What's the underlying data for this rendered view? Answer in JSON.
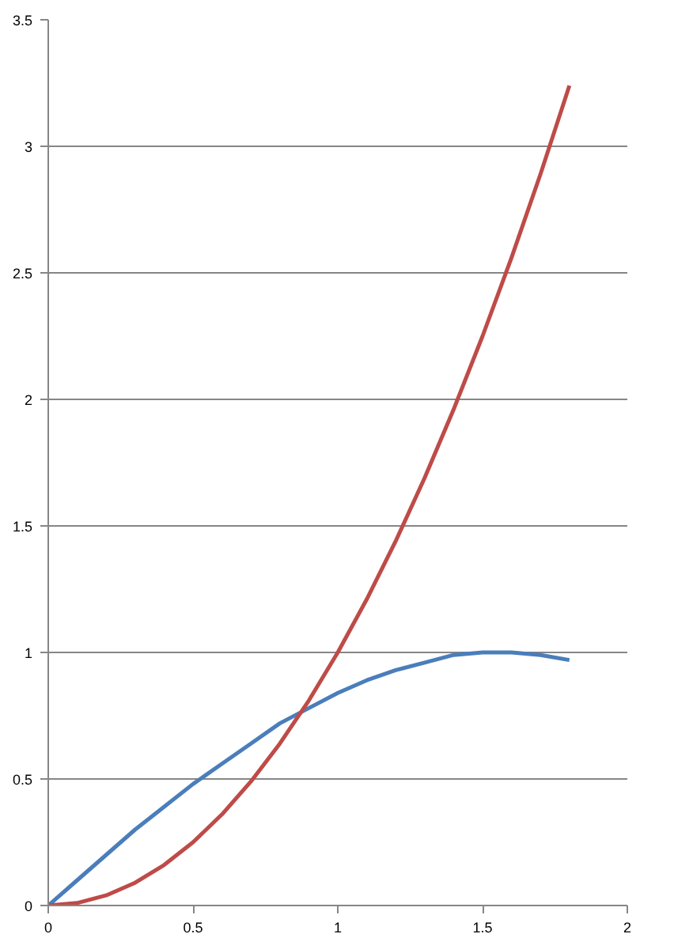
{
  "chart_data": {
    "type": "line",
    "x": [
      0,
      0.1,
      0.2,
      0.3,
      0.4,
      0.5,
      0.6,
      0.7,
      0.8,
      0.9,
      1.0,
      1.1,
      1.2,
      1.3,
      1.4,
      1.5,
      1.6,
      1.7,
      1.8
    ],
    "series": [
      {
        "color": "#4a7ebb",
        "values": [
          0,
          0.1,
          0.2,
          0.3,
          0.39,
          0.48,
          0.56,
          0.64,
          0.72,
          0.78,
          0.84,
          0.89,
          0.93,
          0.96,
          0.99,
          1.0,
          1.0,
          0.99,
          0.97
        ]
      },
      {
        "color": "#be4b48",
        "values": [
          0,
          0.01,
          0.04,
          0.09,
          0.16,
          0.25,
          0.36,
          0.49,
          0.64,
          0.81,
          1.0,
          1.21,
          1.44,
          1.69,
          1.96,
          2.25,
          2.56,
          2.89,
          3.24
        ]
      }
    ],
    "xlim": [
      0,
      2
    ],
    "xticks": [
      0,
      0.5,
      1,
      1.5,
      2
    ],
    "ylim": [
      0,
      3.5
    ],
    "yticks": [
      0,
      0.5,
      1,
      1.5,
      2,
      2.5,
      3,
      3.5
    ],
    "grid": "y",
    "marker": "none",
    "line_style": "solid"
  }
}
